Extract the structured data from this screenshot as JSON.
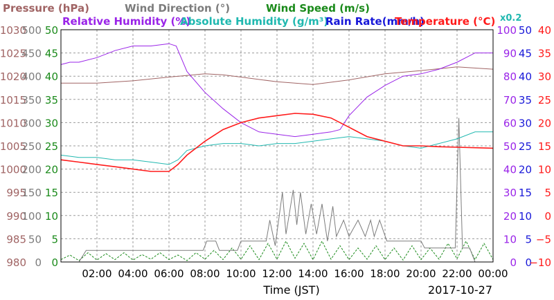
{
  "colors": {
    "pressure": "#a06464",
    "wind_direction": "#7c7c7c",
    "wind_speed": "#1a8a1a",
    "relative_humidity": "#9a24e8",
    "absolute_humidity": "#20b8b0",
    "rain_rate": "#1818d8",
    "temperature": "#ff1a1a",
    "grid": "#9a9a9a"
  },
  "chart_data": {
    "type": "line",
    "legend": [
      {
        "key": "pressure",
        "label": "Pressure (hPa)"
      },
      {
        "key": "wind_direction",
        "label": "Wind Direction (°)"
      },
      {
        "key": "wind_speed",
        "label": "Wind Speed (m/s)"
      },
      {
        "key": "relative_humidity",
        "label": "Relative Humidity (%)"
      },
      {
        "key": "absolute_humidity",
        "label": "Absolute Humidity (g/m³)"
      },
      {
        "key": "rain_rate",
        "label": "Rain Rate(mm/h)"
      },
      {
        "key": "temperature",
        "label": "Temperature (°C)"
      }
    ],
    "abs_humidity_multiplier_label": "x0.2",
    "xlabel": "Time (JST)",
    "date_label": "2017-10-27",
    "x_ticks": [
      "02:00",
      "04:00",
      "06:00",
      "08:00",
      "10:00",
      "12:00",
      "14:00",
      "16:00",
      "18:00",
      "20:00",
      "22:00",
      "00:00"
    ],
    "axes": {
      "pressure": {
        "range": [
          980,
          1030
        ],
        "ticks": [
          "1030",
          "1025",
          "1020",
          "1015",
          "1010",
          "1005",
          "1000",
          "995",
          "990",
          "985",
          "980"
        ]
      },
      "wind_direction": {
        "range": [
          0,
          500
        ],
        "ticks": [
          "500",
          "450",
          "400",
          "350",
          "300",
          "250",
          "200",
          "150",
          "100",
          "50",
          "0"
        ]
      },
      "wind_speed": {
        "range": [
          0,
          50
        ],
        "ticks": [
          "50",
          "45",
          "40",
          "35",
          "30",
          "25",
          "20",
          "15",
          "10",
          "5",
          "0"
        ]
      },
      "relative_humidity": {
        "range": [
          0,
          100
        ],
        "ticks": [
          "100",
          "90",
          "80",
          "70",
          "60",
          "50",
          "40",
          "30",
          "20",
          "10",
          "0"
        ]
      },
      "rain_rate": {
        "range": [
          0,
          50
        ],
        "ticks": [
          "50",
          "45",
          "40",
          "35",
          "30",
          "25",
          "20",
          "15",
          "10",
          "5",
          "0"
        ]
      },
      "temperature": {
        "range": [
          -10,
          40
        ],
        "ticks": [
          "40",
          "35",
          "30",
          "25",
          "20",
          "15",
          "10",
          "5",
          "0",
          "−5",
          "−10"
        ]
      }
    },
    "x_range_hours": [
      0,
      24
    ],
    "series": [
      {
        "key": "pressure",
        "axis": "pressure",
        "values": [
          [
            0,
            1018.5
          ],
          [
            2,
            1018.5
          ],
          [
            4,
            1019
          ],
          [
            6,
            1019.8
          ],
          [
            8,
            1020.5
          ],
          [
            9,
            1020.3
          ],
          [
            10,
            1019.8
          ],
          [
            12,
            1018.8
          ],
          [
            14,
            1018.2
          ],
          [
            16,
            1019.2
          ],
          [
            18,
            1020.5
          ],
          [
            20,
            1021.2
          ],
          [
            22,
            1022
          ],
          [
            24,
            1021.5
          ]
        ]
      },
      {
        "key": "wind_direction",
        "axis": "wind_direction",
        "values": [
          [
            0,
            0
          ],
          [
            1,
            0
          ],
          [
            1.4,
            25
          ],
          [
            6,
            25
          ],
          [
            7.9,
            25
          ],
          [
            8.1,
            45
          ],
          [
            8.6,
            45
          ],
          [
            8.8,
            25
          ],
          [
            9.8,
            25
          ],
          [
            10,
            45
          ],
          [
            11,
            45
          ],
          [
            11.4,
            45
          ],
          [
            11.6,
            90
          ],
          [
            11.9,
            35
          ],
          [
            12.3,
            150
          ],
          [
            12.5,
            60
          ],
          [
            12.9,
            155
          ],
          [
            13.1,
            80
          ],
          [
            13.3,
            150
          ],
          [
            13.6,
            60
          ],
          [
            13.9,
            125
          ],
          [
            14.2,
            60
          ],
          [
            14.5,
            125
          ],
          [
            14.8,
            45
          ],
          [
            15.1,
            120
          ],
          [
            15.3,
            55
          ],
          [
            15.7,
            90
          ],
          [
            16,
            55
          ],
          [
            16.5,
            90
          ],
          [
            16.9,
            55
          ],
          [
            17.2,
            90
          ],
          [
            17.4,
            55
          ],
          [
            17.7,
            90
          ],
          [
            18.1,
            45
          ],
          [
            19.5,
            45
          ],
          [
            20,
            45
          ],
          [
            20.2,
            30
          ],
          [
            21.9,
            30
          ],
          [
            22.1,
            310
          ],
          [
            22.3,
            30
          ],
          [
            22.7,
            30
          ],
          [
            23,
            0
          ],
          [
            24,
            0
          ]
        ]
      },
      {
        "key": "wind_speed",
        "axis": "wind_speed",
        "values": [
          [
            0,
            0.5
          ],
          [
            0.5,
            1.5
          ],
          [
            1,
            0.3
          ],
          [
            1.5,
            2
          ],
          [
            2,
            0.4
          ],
          [
            2.5,
            1.8
          ],
          [
            3,
            0.5
          ],
          [
            3.5,
            2
          ],
          [
            4,
            0.4
          ],
          [
            4.5,
            1.6
          ],
          [
            5,
            0.6
          ],
          [
            5.5,
            2
          ],
          [
            6,
            0.5
          ],
          [
            6.5,
            1.5
          ],
          [
            7,
            0.3
          ],
          [
            7.5,
            2
          ],
          [
            8,
            0.6
          ],
          [
            8.5,
            2.5
          ],
          [
            9,
            0.5
          ],
          [
            9.5,
            3
          ],
          [
            10,
            0.6
          ],
          [
            10.5,
            3.5
          ],
          [
            11,
            0.5
          ],
          [
            11.5,
            4
          ],
          [
            12,
            0.6
          ],
          [
            12.5,
            4.5
          ],
          [
            13,
            0.8
          ],
          [
            13.5,
            4
          ],
          [
            14,
            0.5
          ],
          [
            14.5,
            4.5
          ],
          [
            15,
            0.6
          ],
          [
            15.5,
            3.5
          ],
          [
            16,
            0.5
          ],
          [
            16.5,
            3
          ],
          [
            17,
            0.6
          ],
          [
            17.5,
            3.5
          ],
          [
            18,
            0.5
          ],
          [
            18.5,
            3
          ],
          [
            19,
            0.4
          ],
          [
            19.5,
            3.5
          ],
          [
            20,
            0.5
          ],
          [
            20.5,
            3
          ],
          [
            21,
            0.6
          ],
          [
            21.5,
            4
          ],
          [
            22,
            0.7
          ],
          [
            22.5,
            4.5
          ],
          [
            23,
            0.5
          ],
          [
            23.5,
            4
          ],
          [
            24,
            0.5
          ]
        ]
      },
      {
        "key": "relative_humidity",
        "axis": "relative_humidity",
        "values": [
          [
            0,
            85
          ],
          [
            0.5,
            86
          ],
          [
            1,
            86
          ],
          [
            2,
            88
          ],
          [
            3,
            91
          ],
          [
            4,
            93
          ],
          [
            5,
            93
          ],
          [
            6,
            94
          ],
          [
            6.4,
            93
          ],
          [
            7,
            82
          ],
          [
            8,
            73
          ],
          [
            9,
            66
          ],
          [
            10,
            60
          ],
          [
            11,
            56
          ],
          [
            12,
            55
          ],
          [
            13,
            54
          ],
          [
            14,
            55
          ],
          [
            15,
            56
          ],
          [
            15.5,
            57
          ],
          [
            16,
            63
          ],
          [
            17,
            71
          ],
          [
            18,
            76
          ],
          [
            19,
            80
          ],
          [
            20,
            81
          ],
          [
            21,
            83
          ],
          [
            22,
            86
          ],
          [
            23,
            90
          ],
          [
            24,
            90
          ]
        ]
      },
      {
        "key": "absolute_humidity",
        "axis": "wind_speed",
        "values": [
          [
            0,
            23
          ],
          [
            1,
            22.5
          ],
          [
            2,
            22.5
          ],
          [
            3,
            22
          ],
          [
            4,
            22
          ],
          [
            5,
            21.5
          ],
          [
            6,
            21
          ],
          [
            6.5,
            22
          ],
          [
            7,
            24
          ],
          [
            8,
            25
          ],
          [
            9,
            25.5
          ],
          [
            10,
            25.5
          ],
          [
            11,
            25
          ],
          [
            12,
            25.5
          ],
          [
            13,
            25.5
          ],
          [
            14,
            26
          ],
          [
            15,
            26.5
          ],
          [
            16,
            27
          ],
          [
            17,
            26.5
          ],
          [
            18,
            26
          ],
          [
            19,
            25
          ],
          [
            20,
            24.5
          ],
          [
            21,
            25.5
          ],
          [
            22,
            26.5
          ],
          [
            23,
            28
          ],
          [
            24,
            28
          ]
        ]
      },
      {
        "key": "rain_rate",
        "axis": "rain_rate",
        "values": [
          [
            0,
            0
          ],
          [
            24,
            0
          ]
        ]
      },
      {
        "key": "temperature",
        "axis": "temperature",
        "values": [
          [
            0,
            12
          ],
          [
            1,
            11.5
          ],
          [
            2,
            11
          ],
          [
            3,
            10.5
          ],
          [
            4,
            10
          ],
          [
            5,
            9.5
          ],
          [
            6,
            9.5
          ],
          [
            6.5,
            11
          ],
          [
            7,
            13
          ],
          [
            8,
            16
          ],
          [
            9,
            18.5
          ],
          [
            10,
            20
          ],
          [
            11,
            21
          ],
          [
            12,
            21.5
          ],
          [
            13,
            22
          ],
          [
            14,
            21.8
          ],
          [
            15,
            21
          ],
          [
            16,
            19
          ],
          [
            17,
            17
          ],
          [
            18,
            16
          ],
          [
            19,
            15
          ],
          [
            20,
            15
          ],
          [
            21,
            14.8
          ],
          [
            22,
            14.7
          ],
          [
            23,
            14.6
          ],
          [
            24,
            14.5
          ]
        ]
      }
    ]
  }
}
